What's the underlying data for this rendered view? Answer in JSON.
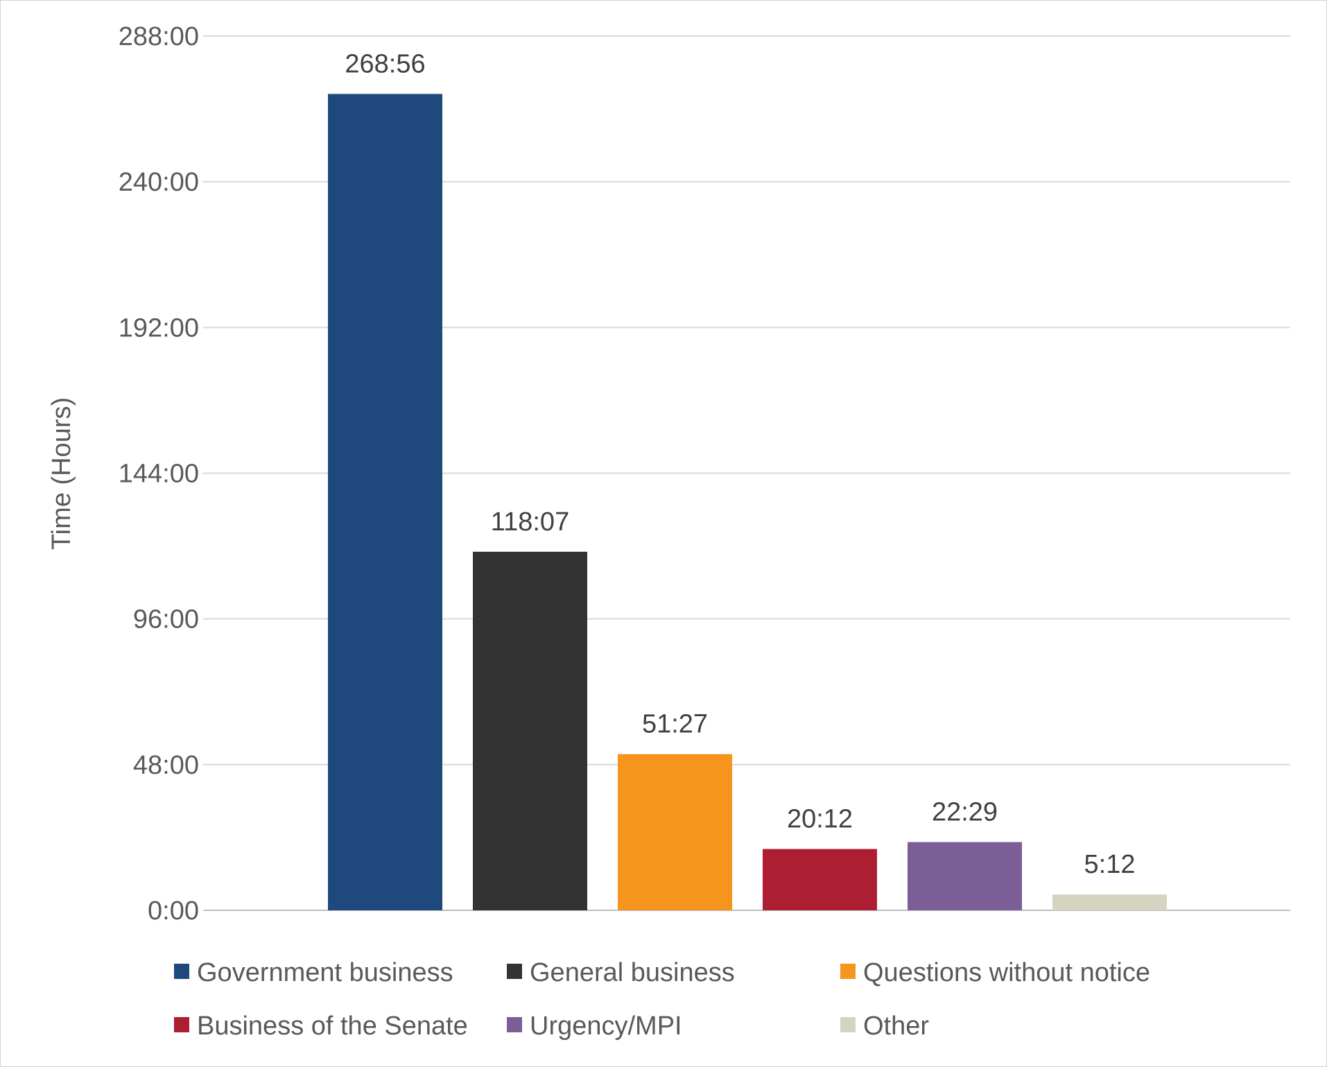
{
  "chart_data": {
    "type": "bar",
    "title": "",
    "xlabel": "",
    "ylabel": "Time (Hours)",
    "ylim": [
      0,
      288
    ],
    "yticks": [
      0,
      48,
      96,
      144,
      192,
      240,
      288
    ],
    "ytick_labels": [
      "0:00",
      "48:00",
      "96:00",
      "144:00",
      "192:00",
      "240:00",
      "288:00"
    ],
    "grid": true,
    "legend_position": "bottom",
    "categories": [
      "Government business",
      "General business",
      "Questions without notice",
      "Business of the Senate",
      "Urgency/MPI",
      "Other"
    ],
    "values": [
      268.93,
      118.12,
      51.45,
      20.2,
      22.48,
      5.2
    ],
    "data_labels": [
      "268:56",
      "118:07",
      "51:27",
      "20:12",
      "22:29",
      "5:12"
    ],
    "colors": [
      "#1F497D",
      "#333333",
      "#F7941D",
      "#AE1E33",
      "#7B5E96",
      "#D6D3C1"
    ]
  }
}
